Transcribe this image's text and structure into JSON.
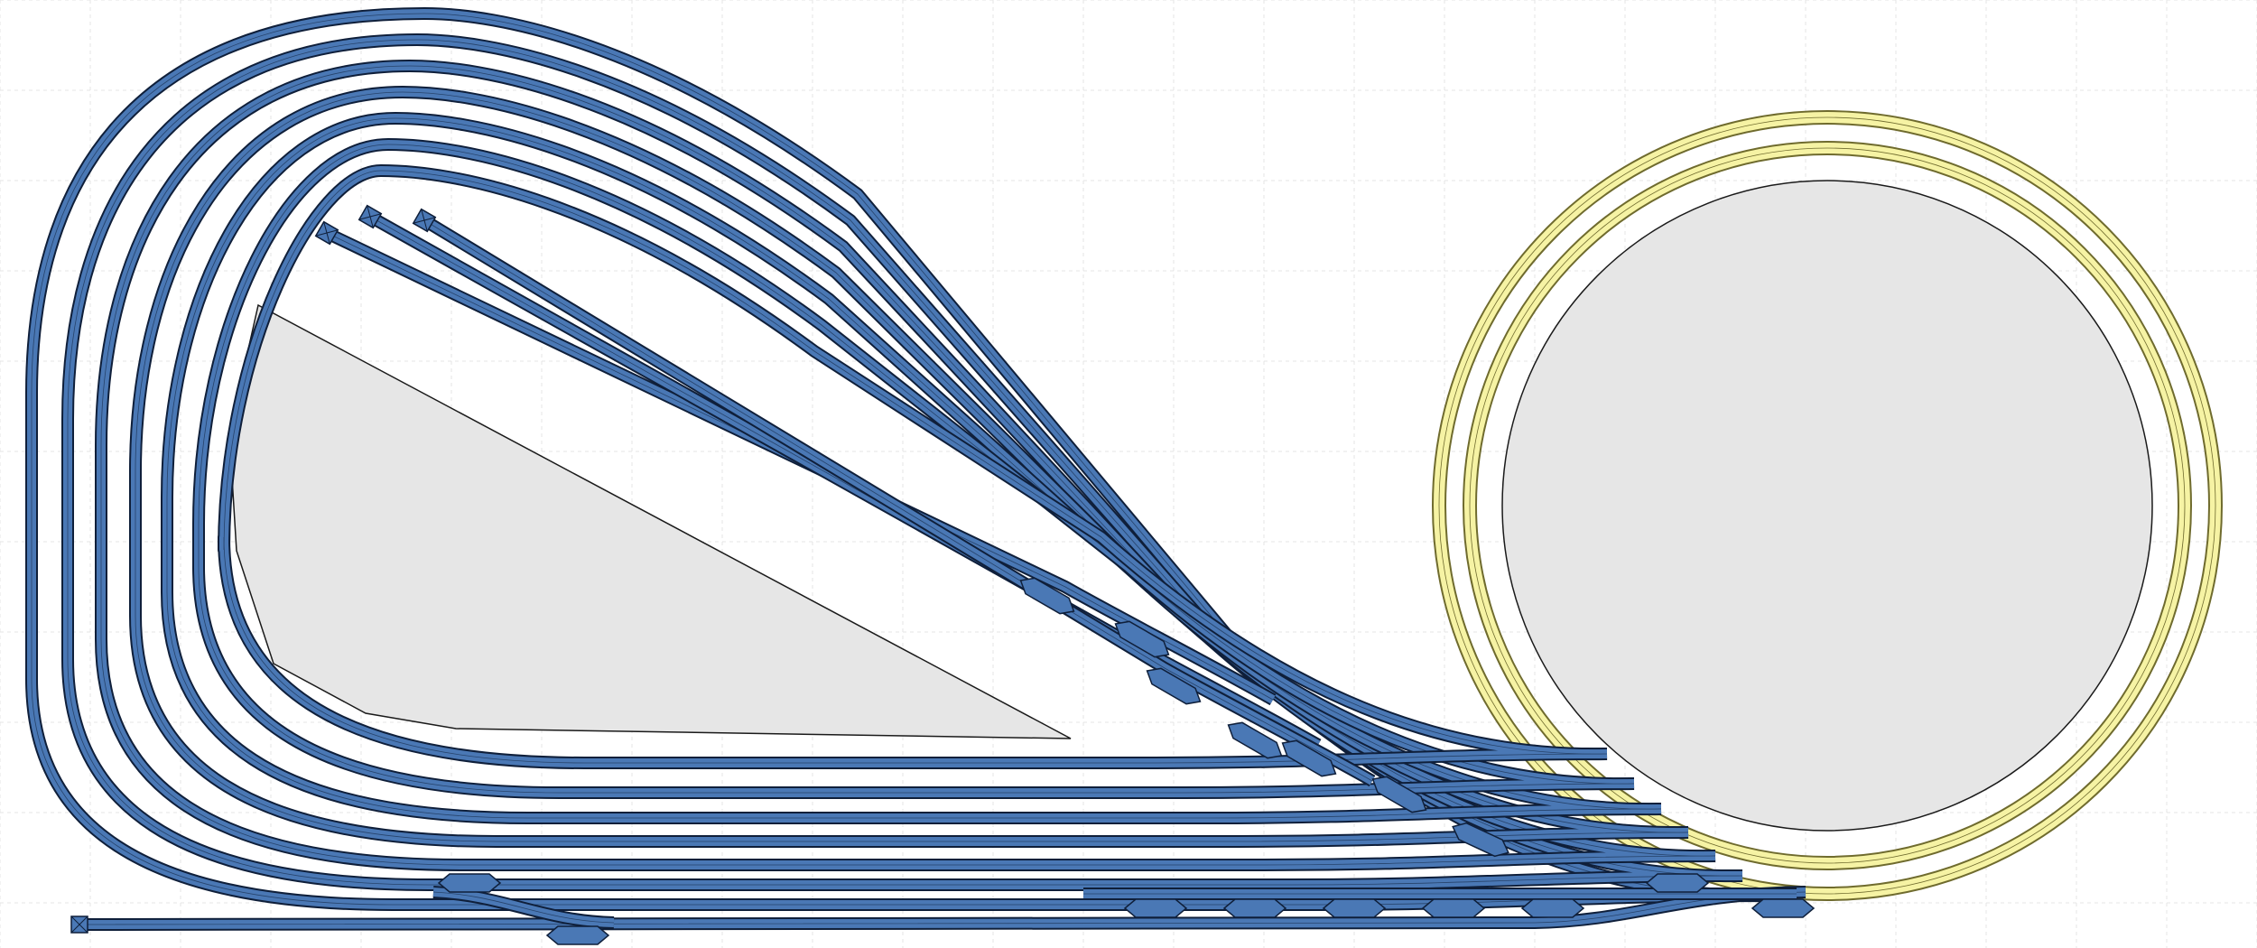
{
  "colors": {
    "background": "#ffffff",
    "grid": "#e4e4e4",
    "track_fill": "#4a78b5",
    "track_edge": "#0f1f3a",
    "track_center": "#2c5690",
    "loop_fill": "#f6f3a4",
    "loop_edge": "#6f6b2e",
    "platform_fill": "#e6e6e6",
    "platform_edge": "#1a1a1a",
    "turnout_fill": "#4a78b5"
  },
  "layout": {
    "fan_tracks": 7,
    "stub_tracks": 3,
    "loop_rings": 2,
    "turnouts": 16,
    "buffer_stops": 4
  }
}
